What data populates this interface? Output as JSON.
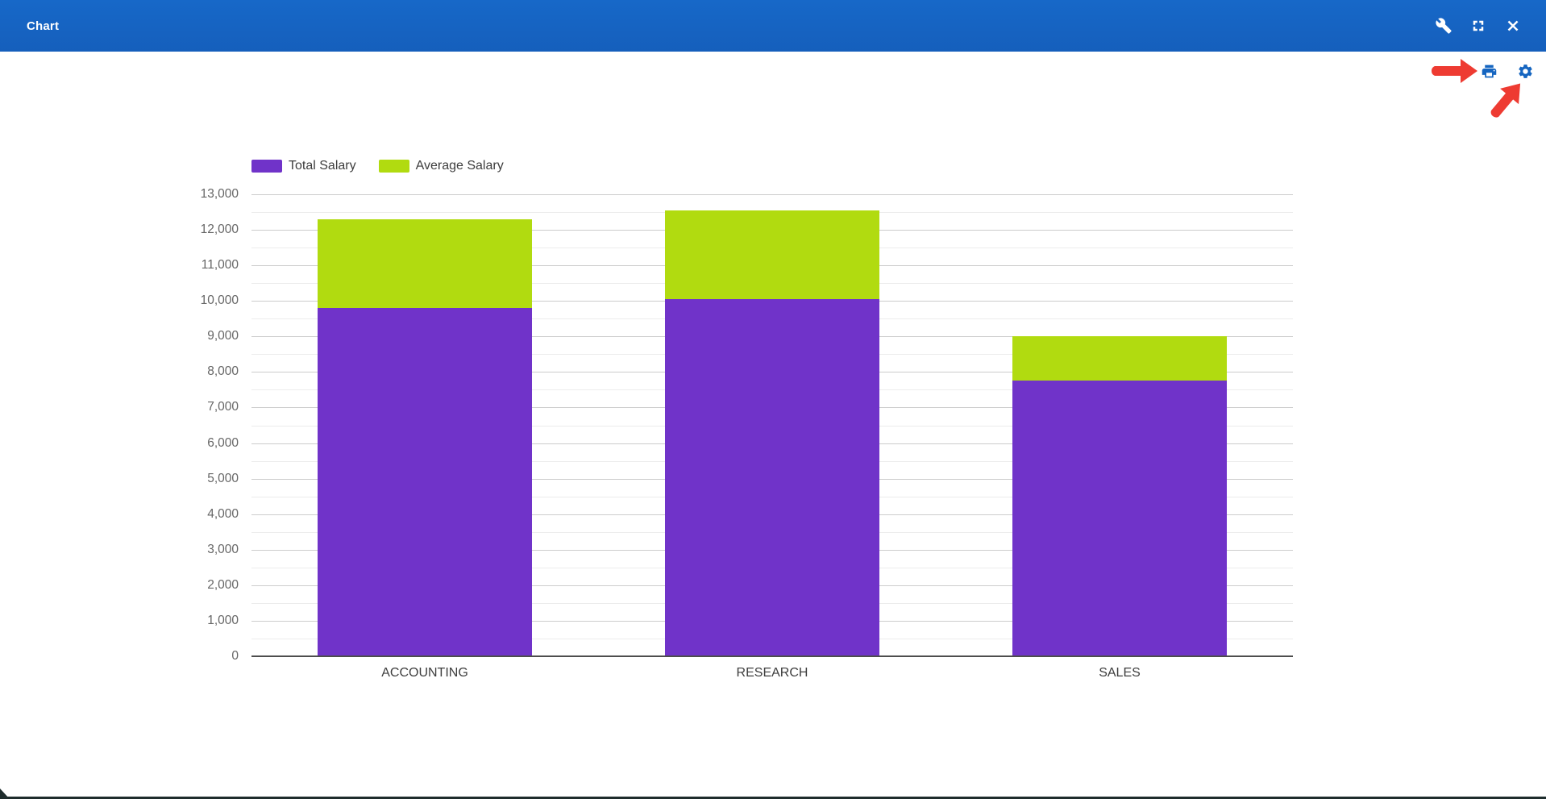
{
  "window": {
    "title": "Chart",
    "icons": {
      "tools": "tools-icon",
      "fullscreen": "fullscreen-icon",
      "close": "close-icon"
    },
    "titlebar_color": "#1565c0"
  },
  "export_toolbar": {
    "print": "print-icon",
    "settings": "gear-icon",
    "icon_color": "#1565c0"
  },
  "annotations": {
    "arrows": [
      {
        "name": "arrow-to-print",
        "target": "print-icon",
        "direction": "right"
      },
      {
        "name": "arrow-to-settings",
        "target": "gear-icon",
        "direction": "up-right"
      }
    ],
    "color": "#ee3b32"
  },
  "chart_data": {
    "type": "bar",
    "stacked": true,
    "title": "",
    "xlabel": "",
    "ylabel": "",
    "categories": [
      "ACCOUNTING",
      "RESEARCH",
      "SALES"
    ],
    "series": [
      {
        "name": "Total Salary",
        "color": "#7033c9",
        "values": [
          9800,
          10050,
          7750
        ]
      },
      {
        "name": "Average Salary",
        "color": "#b1db10",
        "values": [
          2500,
          2500,
          1250
        ]
      }
    ],
    "stack_totals": [
      12300,
      12550,
      9000
    ],
    "ylim": [
      0,
      13000
    ],
    "y_tick_interval": 1000,
    "y_minor_interval": 500,
    "y_tick_labels": [
      "0",
      "1,000",
      "2,000",
      "3,000",
      "4,000",
      "5,000",
      "6,000",
      "7,000",
      "8,000",
      "9,000",
      "10,000",
      "11,000",
      "12,000",
      "13,000"
    ],
    "grid": true,
    "legend_position": "top-left",
    "colors": {
      "grid_major": "#cccccc",
      "grid_minor": "#ececec",
      "zero_line": "#4d4d4d",
      "y_tick_text": "#666666",
      "x_tick_text": "#3d3d3d"
    }
  }
}
